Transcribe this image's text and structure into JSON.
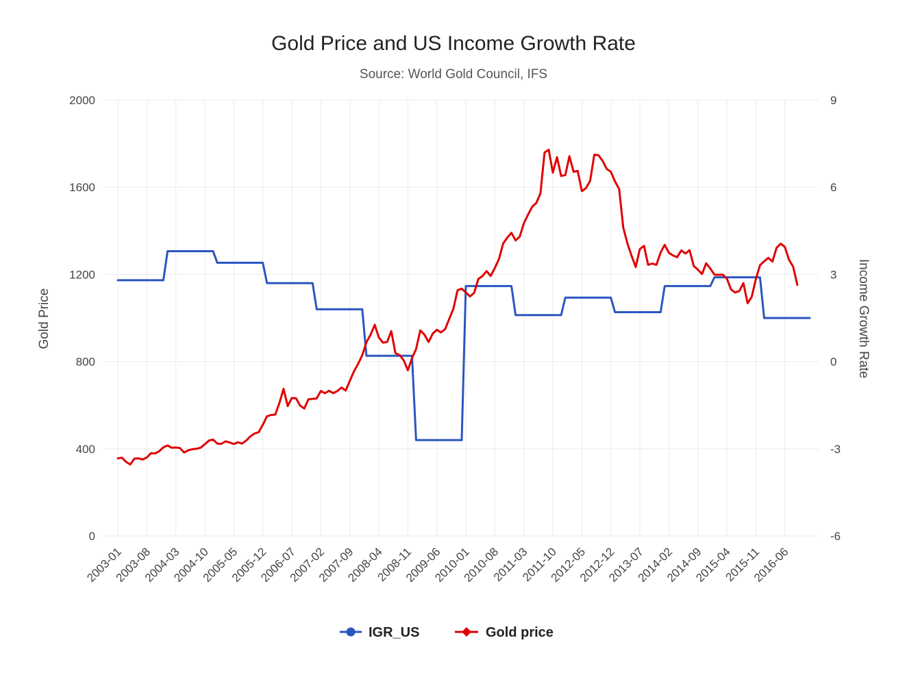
{
  "chart_data": {
    "type": "line",
    "title": "Gold Price and US Income Growth Rate",
    "subtitle": "Source: World Gold Council, IFS",
    "y_left": {
      "label": "Gold Price",
      "range": [
        0,
        2000
      ],
      "ticks": [
        0,
        400,
        800,
        1200,
        1600,
        2000
      ]
    },
    "y_right": {
      "label": "Income Growth Rate",
      "range": [
        -6,
        9
      ],
      "ticks": [
        -6,
        -3,
        0,
        3,
        6,
        9
      ]
    },
    "x": {
      "start": "2003-01",
      "end": "2016-12",
      "tick_labels": [
        "2003-01",
        "2003-08",
        "2004-03",
        "2004-10",
        "2005-05",
        "2005-12",
        "2006-07",
        "2007-02",
        "2007-09",
        "2008-04",
        "2008-11",
        "2009-06",
        "2010-01",
        "2010-08",
        "2011-03",
        "2011-10",
        "2012-05",
        "2012-12",
        "2013-07",
        "2014-02",
        "2014-09",
        "2015-04",
        "2015-11",
        "2016-06"
      ]
    },
    "grid": true,
    "legend_position": "bottom",
    "series": [
      {
        "name": "IGR_US",
        "axis": "right",
        "color": "#2a55c0",
        "marker": "circle",
        "segments": [
          {
            "from": "2003-01",
            "to": "2003-12",
            "value": 2.8
          },
          {
            "from": "2004-01",
            "to": "2004-12",
            "value": 3.8
          },
          {
            "from": "2005-01",
            "to": "2005-12",
            "value": 3.4
          },
          {
            "from": "2006-01",
            "to": "2006-12",
            "value": 2.7
          },
          {
            "from": "2007-01",
            "to": "2007-12",
            "value": 1.8
          },
          {
            "from": "2008-01",
            "to": "2008-12",
            "value": 0.2
          },
          {
            "from": "2009-01",
            "to": "2009-12",
            "value": -2.7
          },
          {
            "from": "2010-01",
            "to": "2010-12",
            "value": 2.6
          },
          {
            "from": "2011-01",
            "to": "2011-12",
            "value": 1.6
          },
          {
            "from": "2012-01",
            "to": "2012-12",
            "value": 2.2
          },
          {
            "from": "2013-01",
            "to": "2013-12",
            "value": 1.7
          },
          {
            "from": "2014-01",
            "to": "2014-12",
            "value": 2.6
          },
          {
            "from": "2015-01",
            "to": "2015-12",
            "value": 2.9
          },
          {
            "from": "2016-01",
            "to": "2016-12",
            "value": 1.5
          }
        ]
      },
      {
        "name": "Gold price",
        "axis": "left",
        "color": "#e00000",
        "marker": "diamond",
        "start": "2003-01",
        "values": [
          356,
          359,
          340,
          328,
          355,
          356,
          351,
          360,
          380,
          379,
          389,
          407,
          415,
          405,
          406,
          403,
          383,
          393,
          398,
          400,
          405,
          421,
          438,
          442,
          424,
          423,
          434,
          429,
          422,
          430,
          424,
          438,
          457,
          470,
          476,
          510,
          549,
          555,
          557,
          610,
          675,
          596,
          633,
          632,
          598,
          585,
          627,
          629,
          631,
          665,
          655,
          666,
          655,
          665,
          681,
          667,
          712,
          755,
          790,
          829,
          889,
          923,
          969,
          911,
          887,
          890,
          940,
          839,
          830,
          806,
          760,
          816,
          858,
          943,
          924,
          890,
          928,
          946,
          934,
          949,
          996,
          1043,
          1127,
          1135,
          1117,
          1099,
          1115,
          1179,
          1192,
          1215,
          1193,
          1230,
          1271,
          1342,
          1369,
          1391,
          1356,
          1373,
          1434,
          1474,
          1510,
          1528,
          1571,
          1759,
          1772,
          1667,
          1738,
          1652,
          1656,
          1742,
          1671,
          1675,
          1582,
          1596,
          1630,
          1749,
          1747,
          1721,
          1684,
          1671,
          1627,
          1592,
          1415,
          1342,
          1286,
          1234,
          1316,
          1331,
          1244,
          1250,
          1244,
          1300,
          1336,
          1299,
          1287,
          1279,
          1310,
          1296,
          1311,
          1239,
          1222,
          1202,
          1251,
          1227,
          1199,
          1198,
          1199,
          1181,
          1131,
          1117,
          1124,
          1160,
          1068,
          1097,
          1179,
          1242,
          1260,
          1276,
          1259,
          1322,
          1341,
          1326,
          1267,
          1236,
          1152
        ]
      }
    ]
  }
}
